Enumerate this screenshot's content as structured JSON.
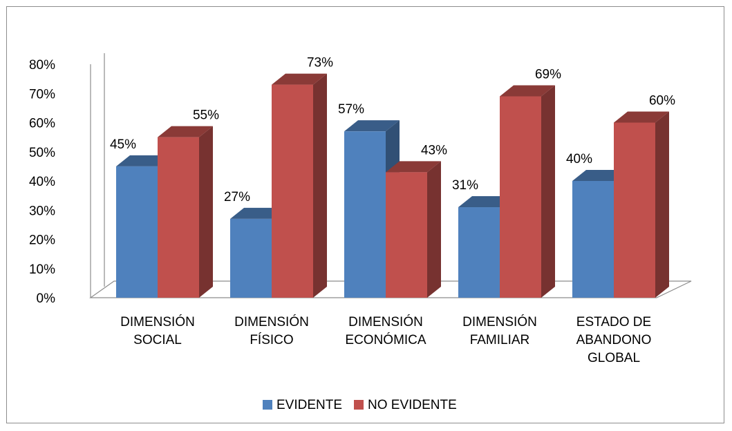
{
  "chart_data": {
    "type": "bar",
    "style": "3d-clustered-column",
    "categories": [
      [
        "DIMENSIÓN",
        "SOCIAL"
      ],
      [
        "DIMENSIÓN",
        "FÍSICO"
      ],
      [
        "DIMENSIÓN",
        "ECONÓMICA"
      ],
      [
        "DIMENSIÓN",
        "FAMILIAR"
      ],
      [
        "ESTADO DE",
        "ABANDONO",
        "GLOBAL"
      ]
    ],
    "series": [
      {
        "name": "EVIDENTE",
        "values": [
          45,
          27,
          57,
          31,
          40
        ],
        "labels": [
          "45%",
          "27%",
          "57%",
          "31%",
          "40%"
        ],
        "color": "#4F81BD"
      },
      {
        "name": "NO EVIDENTE",
        "values": [
          55,
          73,
          43,
          69,
          60
        ],
        "labels": [
          "55%",
          "73%",
          "43%",
          "69%",
          "60%"
        ],
        "color": "#C0504D"
      }
    ],
    "ylim": [
      0,
      80
    ],
    "yticks": [
      0,
      10,
      20,
      30,
      40,
      50,
      60,
      70,
      80
    ],
    "ytick_labels": [
      "0%",
      "10%",
      "20%",
      "30%",
      "40%",
      "50%",
      "60%",
      "70%",
      "80%"
    ],
    "grid": false,
    "legend": "bottom"
  }
}
